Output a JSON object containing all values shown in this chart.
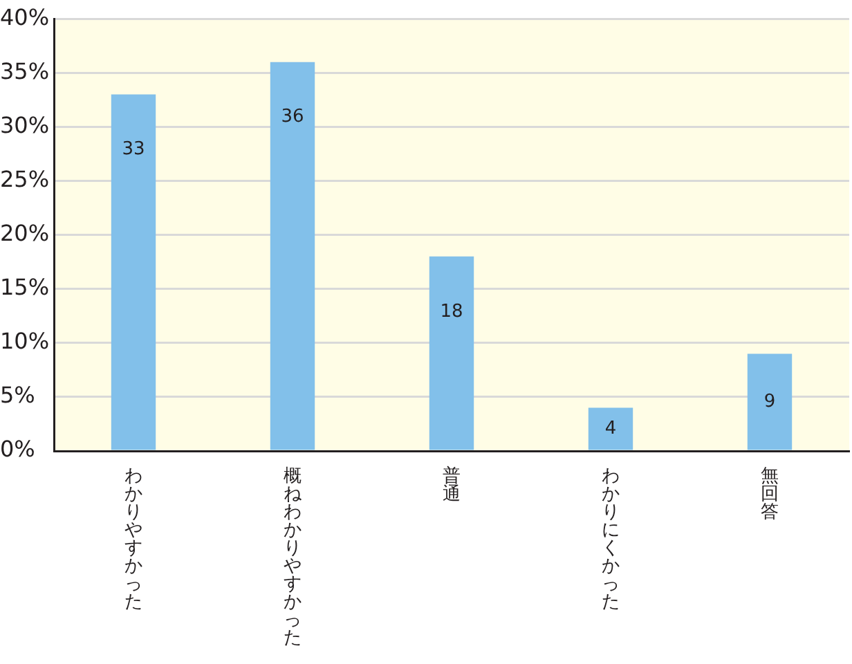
{
  "chart_data": {
    "type": "bar",
    "categories": [
      "わかりやすかった",
      "概ねわかりやすかった",
      "普通",
      "わかりにくかった",
      "無回答"
    ],
    "values": [
      33,
      36,
      18,
      4,
      9
    ],
    "color": "#82c0ea",
    "ylim": [
      0,
      40
    ],
    "yticks": [
      {
        "value": 0,
        "label": "0%"
      },
      {
        "value": 5,
        "label": "5%"
      },
      {
        "value": 10,
        "label": "10%"
      },
      {
        "value": 15,
        "label": "15%"
      },
      {
        "value": 20,
        "label": "20%"
      },
      {
        "value": 25,
        "label": "25%"
      },
      {
        "value": 30,
        "label": "30%"
      },
      {
        "value": 35,
        "label": "35%"
      },
      {
        "value": 40,
        "label": "40%"
      }
    ],
    "grid": "y",
    "data_labels": true
  }
}
